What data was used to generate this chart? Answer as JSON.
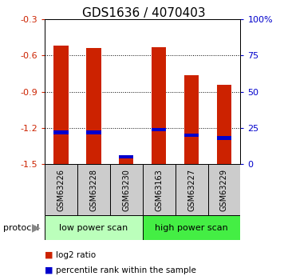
{
  "title": "GDS1636 / 4070403",
  "samples": [
    "GSM63226",
    "GSM63228",
    "GSM63230",
    "GSM63163",
    "GSM63227",
    "GSM63229"
  ],
  "log2_ratio": [
    -0.52,
    -0.54,
    -1.43,
    -0.53,
    -0.76,
    -0.84
  ],
  "percentile_rank": [
    22,
    22,
    5,
    24,
    20,
    18
  ],
  "bar_color": "#cc2200",
  "pct_color": "#0000cc",
  "groups": [
    {
      "label": "low power scan",
      "color": "#bbffbb"
    },
    {
      "label": "high power scan",
      "color": "#44ee44"
    }
  ],
  "ylim": [
    -1.5,
    -0.3
  ],
  "yticks_left": [
    -0.3,
    -0.6,
    -0.9,
    -1.2,
    -1.5
  ],
  "yticks_right_pct": [
    "100%",
    "75",
    "50",
    "25",
    "0"
  ],
  "yticks_right_val": [
    -0.3,
    -0.6,
    -0.9,
    -1.2,
    -1.5
  ],
  "bar_width": 0.45,
  "label_color_left": "#cc2200",
  "label_color_right": "#0000cc",
  "title_fontsize": 11,
  "tick_fontsize": 8,
  "protocol_label": "protocol",
  "legend_red": "log2 ratio",
  "legend_blue": "percentile rank within the sample",
  "sample_box_color": "#cccccc",
  "group_low_color": "#bbffbb",
  "group_high_color": "#44ee44"
}
